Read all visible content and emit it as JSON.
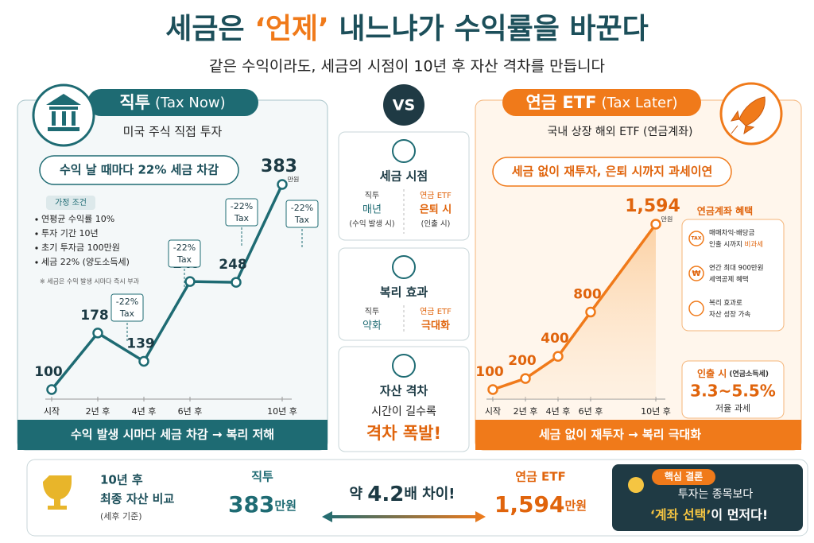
{
  "title_start": "세금은 ",
  "title_highlight": "‘언제’",
  "title_end": " 내느냐가 수익률을 바꾼다",
  "subtitle": "같은 수익이라도, 세금의 시점이 10년 후 자산 격차를 만듭니다",
  "left": {
    "heading": "직투",
    "heading_en": "(Tax Now)",
    "desc": "미국 주식 직접 투자",
    "callout": "수익 날 때마다 22% 세금 차감",
    "assumptions_title": "가정 조건",
    "assumptions": [
      "연평균 수익률 10%",
      "투자 기간 10년",
      "초기 투자금 100만원",
      "세금 22% (양도소득세)"
    ],
    "note": "※ 세금은 수익 발생 시마다 즉시 부과",
    "footer": "수익 발생 시마다 세금 차감 → 복리 저해"
  },
  "vs": "VS",
  "middle": {
    "cards": [
      {
        "title": "세금 시점",
        "left_label": "직투",
        "left_value": "매년",
        "left_note": "(수익 발생 시)",
        "right_label": "연금 ETF",
        "right_value": "은퇴 시",
        "right_note": "(인출 시)"
      },
      {
        "title": "복리 효과",
        "left_label": "직투",
        "left_value": "약화",
        "right_label": "연금 ETF",
        "right_value": "극대화"
      },
      {
        "title": "자산 격차",
        "line": "시간이 길수록",
        "emphasis": "격차 폭발!"
      }
    ]
  },
  "right": {
    "heading": "연금 ETF",
    "heading_en": "(Tax Later)",
    "desc": "국내 상장 해외 ETF (연금계좌)",
    "callout": "세금 없이 재투자, 은퇴 시까지 과세이연",
    "benefits_title": "연금계좌 혜택",
    "tax_icon": "TAX",
    "won_icon": "₩",
    "benefits": [
      {
        "line1": "매매차익·배당금",
        "line2": "인출 시까지 ",
        "highlight": "비과세"
      },
      {
        "line1": "연간 최대 900만원",
        "line2": "세액공제 혜택"
      },
      {
        "line1": "복리 효과로",
        "line2": "자산 성장 가속"
      }
    ],
    "withdraw_title": "인출 시",
    "withdraw_note": "(연금소득세)",
    "withdraw_rate": "3.3~5.5%",
    "withdraw_sub": "저율 과세",
    "footer": "세금 없이 재투자 → 복리 극대화"
  },
  "bottom": {
    "period": "10년 후",
    "label": "최종 자산 비교",
    "note": "(세후 기준)",
    "left_name": "직투",
    "left_value": "383",
    "unit": "만원",
    "ratio_prefix": "약 ",
    "ratio": "4.2",
    "ratio_suffix": "배 차이!",
    "right_name": "연금 ETF",
    "right_value": "1,594",
    "conclusion_title": "핵심 결론",
    "conclusion_line1": "투자는 종목보다",
    "conclusion_highlight": "‘계좌 선택’",
    "conclusion_rest": "이 먼저다!"
  },
  "chart_data": [
    {
      "type": "line",
      "style": "step",
      "x": [
        0,
        2,
        4,
        6,
        8,
        10
      ],
      "values": [
        100,
        178,
        139,
        249,
        248,
        383
      ],
      "unit": "만원",
      "color": "#1e6b73",
      "xlim": [
        0,
        10
      ],
      "xticks": [
        {
          "value": 0,
          "label": "시작"
        },
        {
          "value": 2,
          "label": "2년 후"
        },
        {
          "value": 4,
          "label": "4년 후"
        },
        {
          "value": 6,
          "label": "6년 후"
        },
        {
          "value": 10,
          "label": "10년 후"
        }
      ],
      "annotations": [
        {
          "text": "-22%",
          "sub": "Tax"
        },
        {
          "text": "-22%",
          "sub": "Tax"
        },
        {
          "text": "-22%",
          "sub": "Tax"
        },
        {
          "text": "-22%",
          "sub": "Tax"
        }
      ]
    },
    {
      "type": "line",
      "style": "area",
      "x": [
        0,
        2,
        4,
        6,
        10
      ],
      "values": [
        100,
        200,
        400,
        800,
        1594
      ],
      "value_labels": [
        "100",
        "200",
        "400",
        "800",
        "1,594"
      ],
      "unit": "만원",
      "color": "#f07a1a",
      "xlim": [
        0,
        10
      ],
      "xticks": [
        {
          "value": 0,
          "label": "시작"
        },
        {
          "value": 2,
          "label": "2년 후"
        },
        {
          "value": 4,
          "label": "4년 후"
        },
        {
          "value": 6,
          "label": "6년 후"
        },
        {
          "value": 10,
          "label": "10년 후"
        }
      ]
    }
  ]
}
